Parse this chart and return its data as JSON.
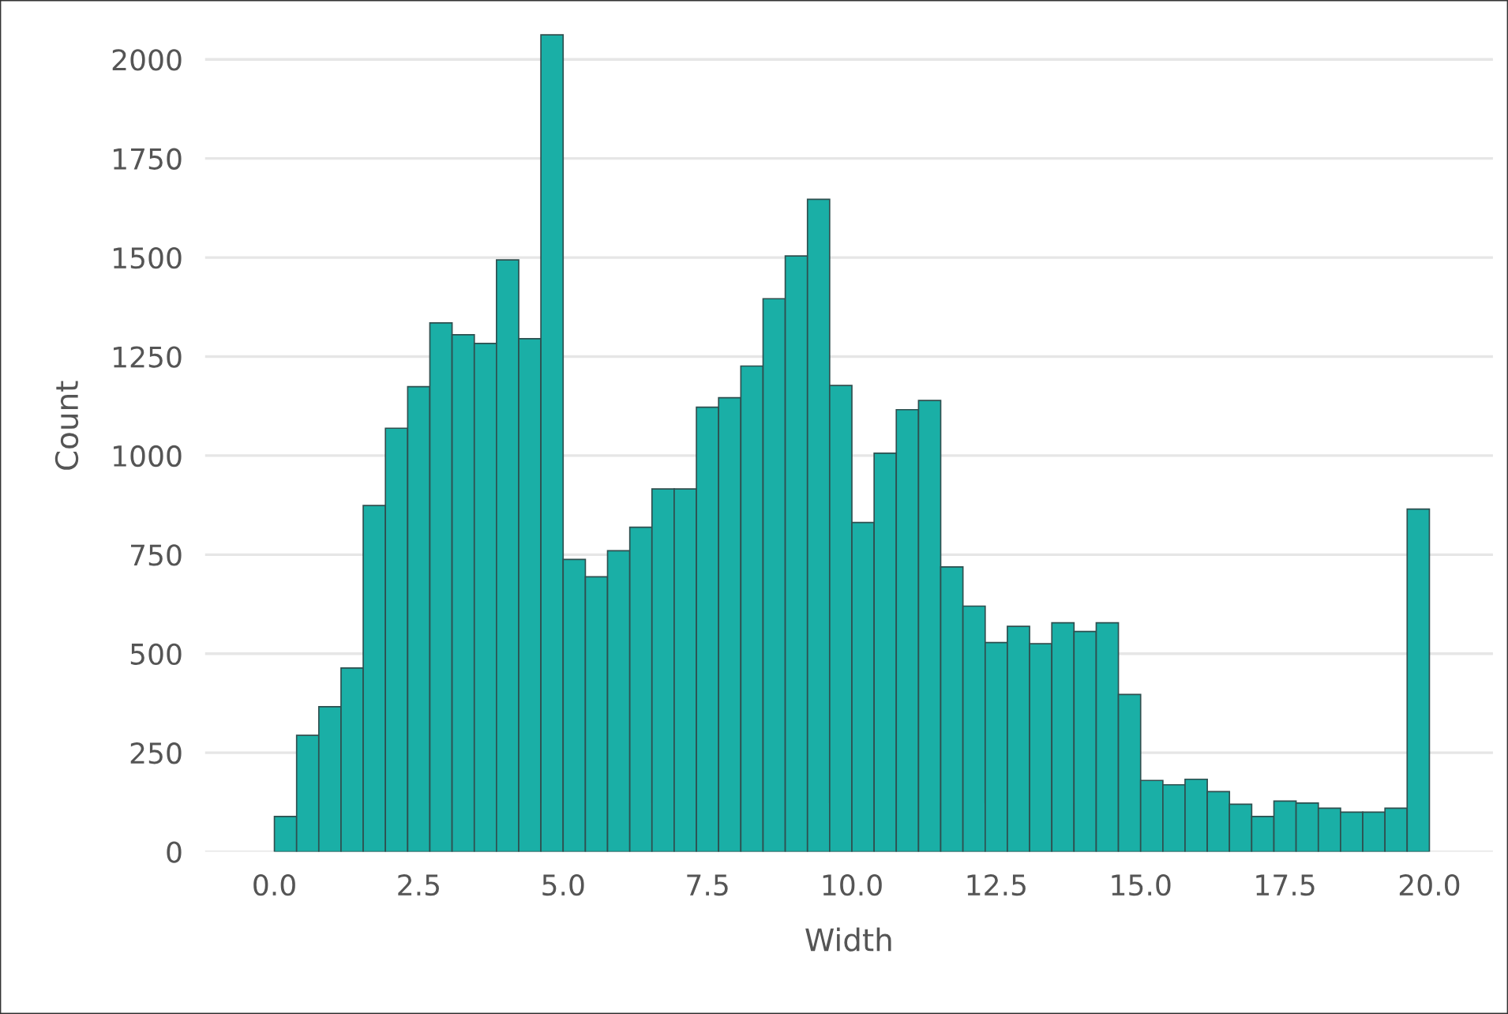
{
  "chart_data": {
    "type": "histogram",
    "xlabel": "Width",
    "ylabel": "Count",
    "bins": [
      0,
      0.385,
      0.769,
      1.154,
      1.538,
      1.923,
      2.308,
      2.692,
      3.077,
      3.462,
      3.846,
      4.231,
      4.615,
      5.0,
      5.385,
      5.769,
      6.154,
      6.538,
      6.923,
      7.308,
      7.692,
      8.077,
      8.462,
      8.846,
      9.231,
      9.615,
      10.0,
      10.385,
      10.769,
      11.154,
      11.538,
      11.923,
      12.308,
      12.692,
      13.077,
      13.462,
      13.846,
      14.231,
      14.615,
      15.0,
      15.385,
      15.769,
      16.154,
      16.538,
      16.923,
      17.308,
      17.692,
      18.077,
      18.462,
      18.846,
      19.231,
      19.615,
      20.0
    ],
    "values": [
      89,
      294,
      366,
      464,
      874,
      1069,
      1174,
      1335,
      1305,
      1283,
      1494,
      1295,
      2062,
      738,
      694,
      760,
      819,
      916,
      916,
      1122,
      1146,
      1226,
      1396,
      1504,
      1647,
      1177,
      831,
      1006,
      1116,
      1139,
      719,
      620,
      528,
      569,
      525,
      578,
      556,
      578,
      397,
      180,
      169,
      183,
      152,
      120,
      89,
      128,
      123,
      110,
      100,
      100,
      110,
      865
    ],
    "color": "#1aafa6",
    "xlim": [
      -1.2,
      21.1
    ],
    "ylim": [
      0,
      2150
    ],
    "xticks": [
      {
        "value": 0,
        "label": "0.0"
      },
      {
        "value": 2.5,
        "label": "2.5"
      },
      {
        "value": 5,
        "label": "5.0"
      },
      {
        "value": 7.5,
        "label": "7.5"
      },
      {
        "value": 10,
        "label": "10.0"
      },
      {
        "value": 12.5,
        "label": "12.5"
      },
      {
        "value": 15,
        "label": "15.0"
      },
      {
        "value": 17.5,
        "label": "17.5"
      },
      {
        "value": 20,
        "label": "20.0"
      }
    ],
    "yticks": [
      0,
      250,
      500,
      750,
      1000,
      1250,
      1500,
      1750,
      2000
    ],
    "grid": "y"
  }
}
